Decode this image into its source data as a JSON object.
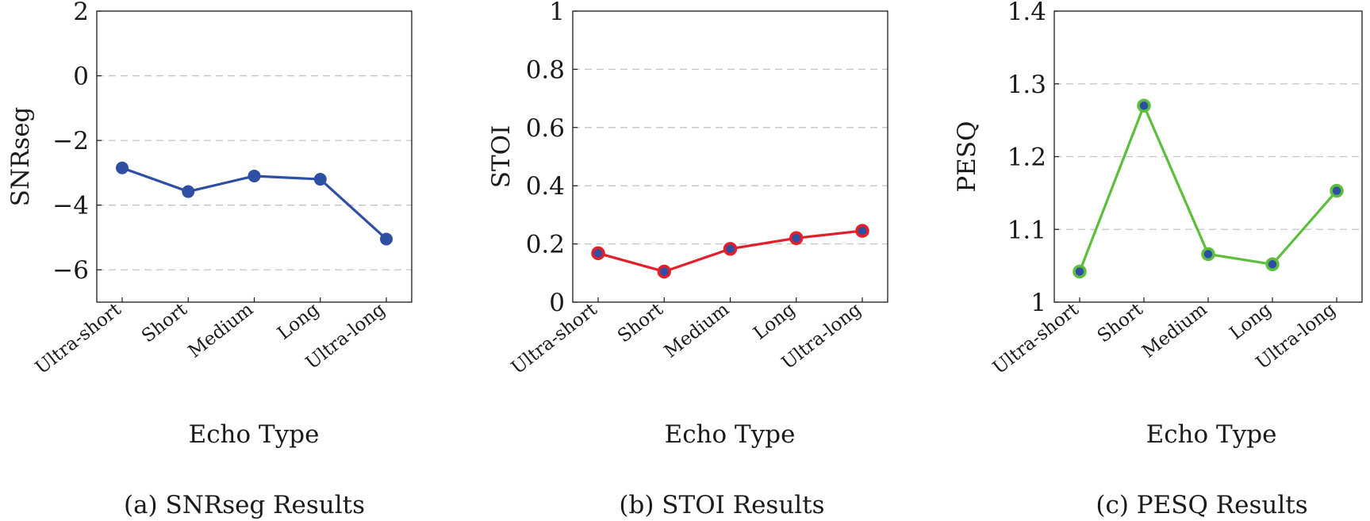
{
  "chart_data": [
    {
      "type": "line",
      "caption": "(a) SNRseg Results",
      "xlabel": "Echo Type",
      "ylabel": "SNRseg",
      "categories": [
        "Ultra-short",
        "Short",
        "Medium",
        "Long",
        "Ultra-long"
      ],
      "series": [
        {
          "values": [
            -2.85,
            -3.58,
            -3.1,
            -3.2,
            -5.05
          ]
        }
      ],
      "ylim": [
        -7,
        2
      ],
      "yticks": [
        2,
        0,
        -2,
        -4,
        -6
      ],
      "ytick_labels": [
        "2",
        "0",
        "−2",
        "−4",
        "−6"
      ],
      "grid": "horizontal dashed",
      "line_color": "#2e4fa3",
      "marker_fill": "#2e4fa3",
      "marker_edge": "#2e4fa3"
    },
    {
      "type": "line",
      "caption": "(b) STOI Results",
      "xlabel": "Echo Type",
      "ylabel": "STOI",
      "categories": [
        "Ultra-short",
        "Short",
        "Medium",
        "Long",
        "Ultra-long"
      ],
      "series": [
        {
          "values": [
            0.168,
            0.105,
            0.183,
            0.22,
            0.245
          ]
        }
      ],
      "ylim": [
        0,
        1
      ],
      "yticks": [
        0,
        0.2,
        0.4,
        0.6,
        0.8,
        1
      ],
      "ytick_labels": [
        "0",
        "0.2",
        "0.4",
        "0.6",
        "0.8",
        "1"
      ],
      "grid": "horizontal dashed",
      "line_color": "#e3202a",
      "marker_fill": "#2e4fa3",
      "marker_edge": "#e3202a"
    },
    {
      "type": "line",
      "caption": "(c) PESQ Results",
      "xlabel": "Echo Type",
      "ylabel": "PESQ",
      "categories": [
        "Ultra-short",
        "Short",
        "Medium",
        "Long",
        "Ultra-long"
      ],
      "series": [
        {
          "values": [
            1.042,
            1.27,
            1.066,
            1.052,
            1.153
          ]
        }
      ],
      "ylim": [
        1,
        1.4
      ],
      "yticks": [
        1,
        1.1,
        1.2,
        1.3,
        1.4
      ],
      "ytick_labels": [
        "1",
        "1.1",
        "1.2",
        "1.3",
        "1.4"
      ],
      "grid": "horizontal dashed",
      "line_color": "#5cbf3c",
      "marker_fill": "#2e4fa3",
      "marker_edge": "#5cbf3c"
    }
  ]
}
